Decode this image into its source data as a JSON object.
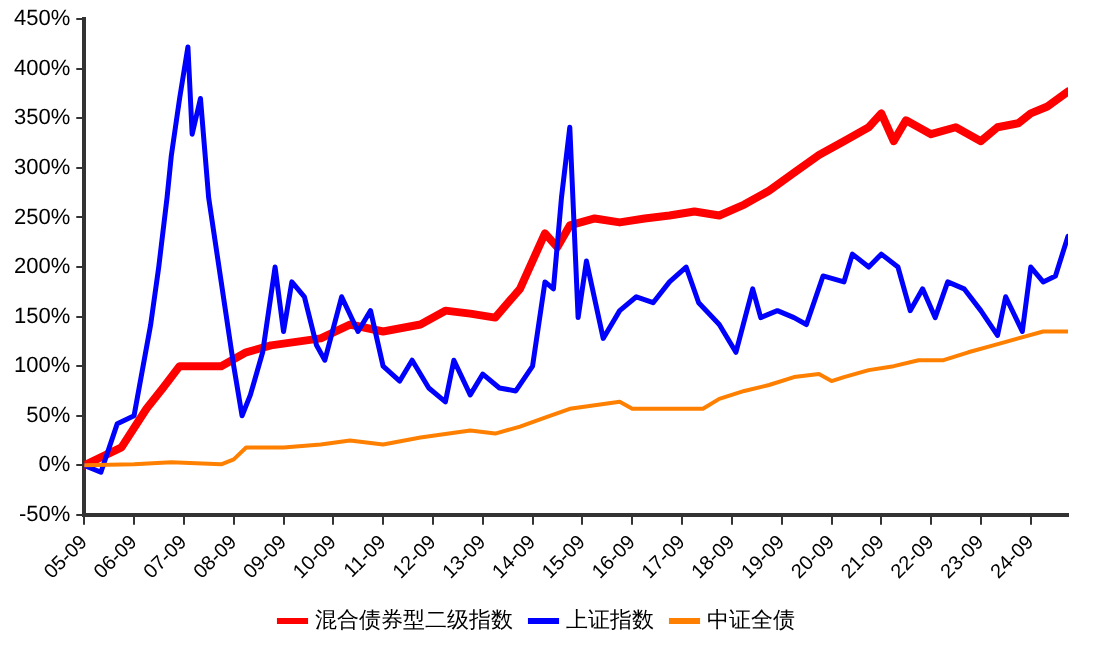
{
  "chart_data": {
    "type": "line",
    "xlim": [
      "2005-09",
      "2025-06"
    ],
    "xticks": [
      {
        "value": "2005-09",
        "label": "05-09"
      },
      {
        "value": "2006-09",
        "label": "06-09"
      },
      {
        "value": "2007-09",
        "label": "07-09"
      },
      {
        "value": "2008-09",
        "label": "08-09"
      },
      {
        "value": "2009-09",
        "label": "09-09"
      },
      {
        "value": "2010-09",
        "label": "10-09"
      },
      {
        "value": "2011-09",
        "label": "11-09"
      },
      {
        "value": "2012-09",
        "label": "12-09"
      },
      {
        "value": "2013-09",
        "label": "13-09"
      },
      {
        "value": "2014-09",
        "label": "14-09"
      },
      {
        "value": "2015-09",
        "label": "15-09"
      },
      {
        "value": "2016-09",
        "label": "16-09"
      },
      {
        "value": "2017-09",
        "label": "17-09"
      },
      {
        "value": "2018-09",
        "label": "18-09"
      },
      {
        "value": "2019-09",
        "label": "19-09"
      },
      {
        "value": "2020-09",
        "label": "20-09"
      },
      {
        "value": "2021-09",
        "label": "21-09"
      },
      {
        "value": "2022-09",
        "label": "22-09"
      },
      {
        "value": "2023-09",
        "label": "23-09"
      },
      {
        "value": "2024-09",
        "label": "24-09"
      }
    ],
    "ylim": [
      -50,
      450
    ],
    "yticks": [
      {
        "value": -50,
        "label": "-50%"
      },
      {
        "value": 0,
        "label": "0%"
      },
      {
        "value": 50,
        "label": "50%"
      },
      {
        "value": 100,
        "label": "100%"
      },
      {
        "value": 150,
        "label": "150%"
      },
      {
        "value": 200,
        "label": "200%"
      },
      {
        "value": 250,
        "label": "250%"
      },
      {
        "value": 300,
        "label": "300%"
      },
      {
        "value": 350,
        "label": "350%"
      },
      {
        "value": 400,
        "label": "400%"
      },
      {
        "value": 450,
        "label": "450%"
      }
    ],
    "legend": "bottom",
    "marker": "none",
    "line_style": "solid",
    "series": [
      {
        "name": "混合债券型二级指数",
        "color": "#ff0000",
        "x": [
          "2005-09",
          "2006-06",
          "2006-12",
          "2007-04",
          "2007-08",
          "2008-06",
          "2008-12",
          "2009-06",
          "2010-06",
          "2011-01",
          "2011-09",
          "2012-06",
          "2012-12",
          "2013-06",
          "2013-12",
          "2014-06",
          "2014-12",
          "2015-03",
          "2015-06",
          "2015-12",
          "2016-06",
          "2016-12",
          "2017-06",
          "2017-12",
          "2018-06",
          "2018-12",
          "2019-06",
          "2019-12",
          "2020-06",
          "2020-12",
          "2021-06",
          "2021-09",
          "2021-12",
          "2022-03",
          "2022-09",
          "2023-03",
          "2023-09",
          "2024-01",
          "2024-06",
          "2024-09",
          "2025-01",
          "2025-06"
        ],
        "values": [
          0,
          18,
          57,
          78,
          100,
          100,
          114,
          121,
          128,
          142,
          135,
          142,
          156,
          153,
          149,
          178,
          234,
          220,
          242,
          249,
          245,
          249,
          252,
          256,
          252,
          263,
          277,
          295,
          313,
          327,
          341,
          355,
          327,
          348,
          334,
          341,
          327,
          341,
          345,
          355,
          362,
          377
        ]
      },
      {
        "name": "上证指数",
        "color": "#0000ff",
        "x": [
          "2005-09",
          "2006-01",
          "2006-05",
          "2006-09",
          "2007-01",
          "2007-03",
          "2007-05",
          "2007-06",
          "2007-08",
          "2007-10",
          "2007-11",
          "2008-01",
          "2008-03",
          "2008-06",
          "2008-09",
          "2008-11",
          "2009-01",
          "2009-04",
          "2009-07",
          "2009-09",
          "2009-11",
          "2010-02",
          "2010-05",
          "2010-07",
          "2010-11",
          "2011-03",
          "2011-06",
          "2011-09",
          "2012-01",
          "2012-04",
          "2012-08",
          "2012-12",
          "2013-02",
          "2013-06",
          "2013-09",
          "2014-01",
          "2014-05",
          "2014-09",
          "2014-12",
          "2015-02",
          "2015-04",
          "2015-06",
          "2015-08",
          "2015-10",
          "2016-02",
          "2016-06",
          "2016-10",
          "2017-02",
          "2017-06",
          "2017-10",
          "2018-01",
          "2018-06",
          "2018-10",
          "2019-02",
          "2019-04",
          "2019-08",
          "2019-12",
          "2020-03",
          "2020-07",
          "2020-12",
          "2021-02",
          "2021-06",
          "2021-09",
          "2022-01",
          "2022-04",
          "2022-07",
          "2022-10",
          "2023-01",
          "2023-05",
          "2023-09",
          "2024-01",
          "2024-03",
          "2024-07",
          "2024-09",
          "2024-12",
          "2025-03",
          "2025-06"
        ],
        "values": [
          0,
          -7,
          42,
          50,
          142,
          200,
          270,
          312,
          370,
          422,
          334,
          370,
          270,
          185,
          100,
          50,
          71,
          114,
          200,
          135,
          185,
          170,
          121,
          106,
          170,
          135,
          156,
          100,
          85,
          106,
          78,
          64,
          106,
          71,
          92,
          78,
          75,
          100,
          185,
          178,
          270,
          341,
          149,
          206,
          128,
          156,
          170,
          164,
          185,
          200,
          164,
          142,
          114,
          178,
          149,
          156,
          149,
          142,
          191,
          185,
          213,
          200,
          213,
          200,
          156,
          178,
          149,
          185,
          178,
          156,
          131,
          170,
          135,
          200,
          185,
          191,
          231
        ]
      },
      {
        "name": "中证全债",
        "color": "#ff8000",
        "x": [
          "2005-09",
          "2006-09",
          "2007-06",
          "2008-06",
          "2008-09",
          "2008-12",
          "2009-09",
          "2010-06",
          "2011-01",
          "2011-09",
          "2012-06",
          "2013-06",
          "2013-12",
          "2014-06",
          "2014-12",
          "2015-06",
          "2016-06",
          "2016-09",
          "2018-02",
          "2018-06",
          "2018-12",
          "2019-06",
          "2019-12",
          "2020-06",
          "2020-09",
          "2020-12",
          "2021-06",
          "2021-12",
          "2022-06",
          "2022-12",
          "2023-06",
          "2023-12",
          "2024-06",
          "2024-12",
          "2025-06"
        ],
        "values": [
          0,
          1,
          3,
          1,
          6,
          18,
          18,
          21,
          25,
          21,
          28,
          35,
          32,
          39,
          48,
          57,
          64,
          57,
          57,
          67,
          75,
          81,
          89,
          92,
          85,
          89,
          96,
          100,
          106,
          106,
          114,
          121,
          128,
          135,
          135
        ]
      }
    ]
  }
}
